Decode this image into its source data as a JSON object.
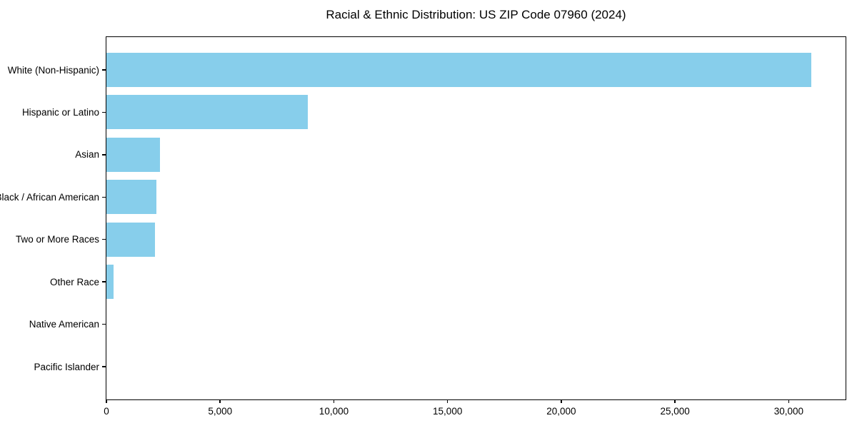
{
  "chart_data": {
    "type": "bar",
    "orientation": "horizontal",
    "title": "Racial & Ethnic Distribution: US ZIP Code 07960 (2024)",
    "categories": [
      "White (Non-Hispanic)",
      "Hispanic or Latino",
      "Asian",
      "Black / African American",
      "Two or More Races",
      "Other Race",
      "Native American",
      "Pacific Islander"
    ],
    "values": [
      31000,
      8870,
      2350,
      2200,
      2150,
      300,
      0,
      0
    ],
    "xlabel": "",
    "ylabel": "",
    "xlim": [
      0,
      32500
    ],
    "xticks": [
      0,
      5000,
      10000,
      15000,
      20000,
      25000,
      30000
    ],
    "xtick_labels": [
      "0",
      "5,000",
      "10,000",
      "15,000",
      "20,000",
      "25,000",
      "30,000"
    ],
    "bar_color": "#87CEEB",
    "spine_color": "#000000",
    "text_color": "#000000",
    "background_color": "#ffffff",
    "grid": false,
    "legend": null
  }
}
